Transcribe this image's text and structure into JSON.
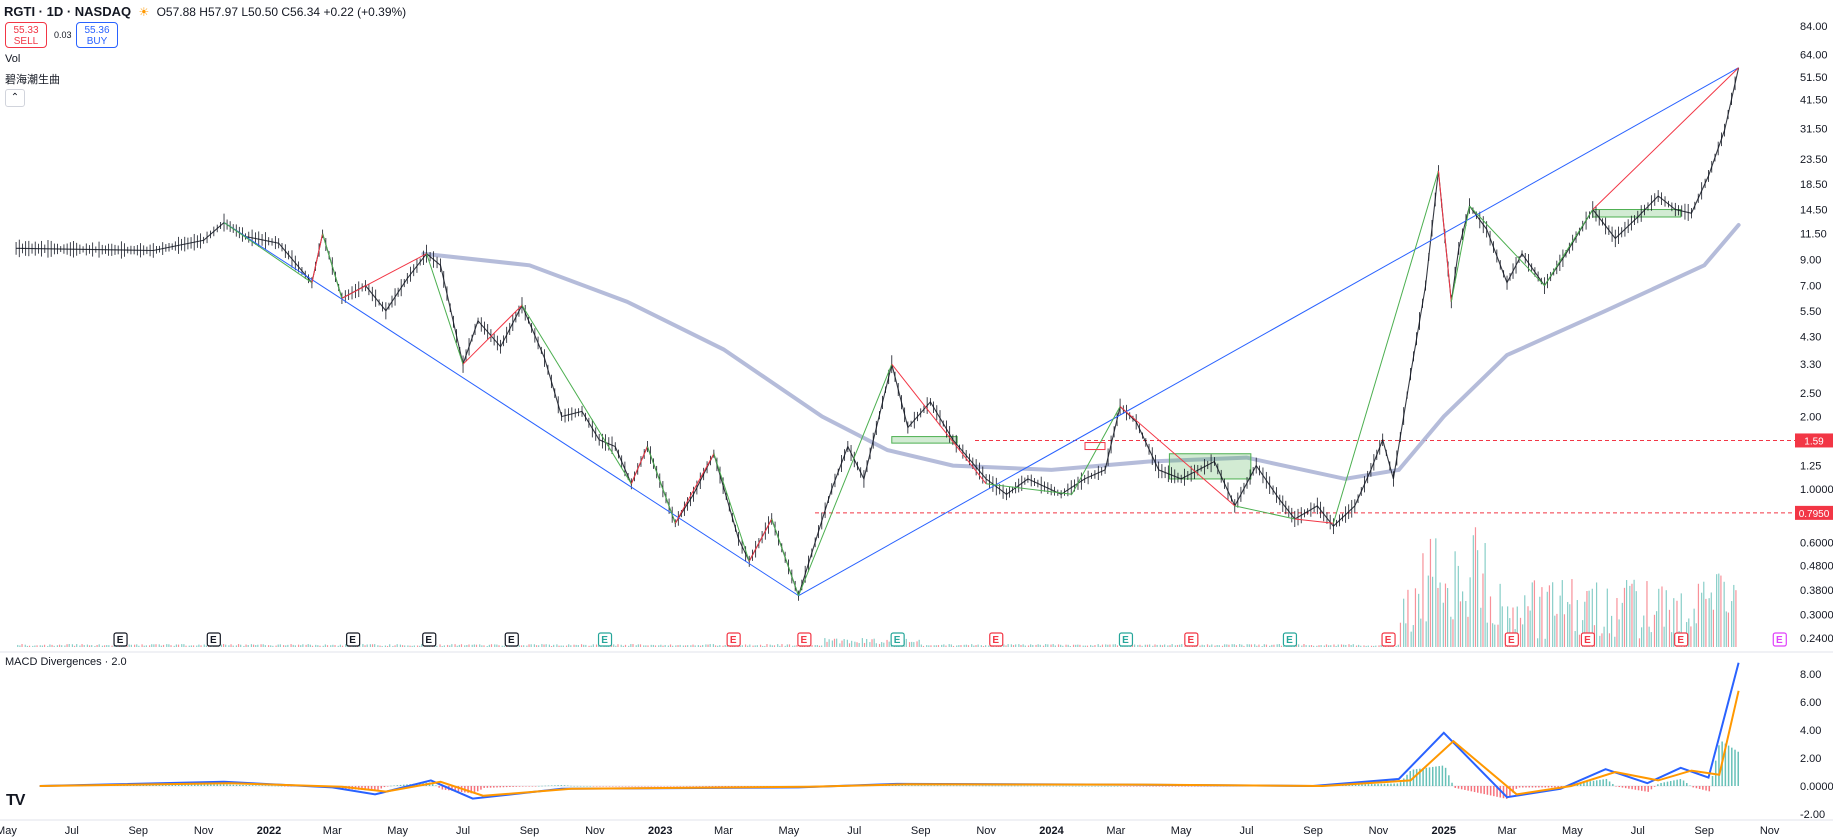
{
  "header": {
    "symbol": "RGTI · 1D · NASDAQ",
    "open": "O57.88",
    "high": "H57.97",
    "low": "L50.50",
    "close": "C56.34",
    "change": "+0.22 (+0.39%)"
  },
  "trade": {
    "sell_price": "55.33",
    "sell_label": "SELL",
    "spread": "0.03",
    "buy_price": "55.36",
    "buy_label": "BUY"
  },
  "legend": {
    "volume": "Vol",
    "indicator": "碧海潮生曲",
    "macd": "MACD Divergences · 2.0"
  },
  "colors": {
    "up": "#26a69a",
    "down": "#f23645",
    "zigzag_green": "#4caf50",
    "zigzag_red": "#f23645",
    "trend_blue": "#2962ff",
    "ma": "#a8b0d4",
    "macd": "#2962ff",
    "signal": "#ff9800"
  },
  "chart_data": [
    {
      "type": "line",
      "panel": "price",
      "scale": "log",
      "y_ticks": [
        "84.00",
        "64.00",
        "51.50",
        "41.50",
        "31.50",
        "23.50",
        "18.50",
        "14.50",
        "11.50",
        "9.00",
        "7.00",
        "5.50",
        "4.30",
        "3.30",
        "2.50",
        "2.00",
        "1.59",
        "1.25",
        "1.0000",
        "0.7950",
        "0.6000",
        "0.4800",
        "0.3800",
        "0.3000",
        "0.2400"
      ],
      "x_ticks": [
        "May",
        "Jul",
        "Sep",
        "Nov",
        "2022",
        "Mar",
        "May",
        "Jul",
        "Sep",
        "Nov",
        "2023",
        "Mar",
        "May",
        "Jul",
        "Sep",
        "Nov",
        "2024",
        "Mar",
        "May",
        "Jul",
        "Sep",
        "Nov",
        "2025",
        "Mar",
        "May",
        "Jul",
        "Sep",
        "Nov"
      ],
      "price_lines": [
        {
          "value": 1.59,
          "label": "1.59"
        },
        {
          "value": 0.795,
          "label": "0.7950"
        }
      ],
      "price_path": [
        [
          "2021-05-10",
          10.0
        ],
        [
          "2021-09-15",
          9.8
        ],
        [
          "2021-11-01",
          10.8
        ],
        [
          "2021-11-20",
          12.8
        ],
        [
          "2021-12-10",
          11.2
        ],
        [
          "2022-01-10",
          10.5
        ],
        [
          "2022-02-10",
          7.2
        ],
        [
          "2022-02-20",
          11.5
        ],
        [
          "2022-03-10",
          6.2
        ],
        [
          "2022-04-01",
          7.0
        ],
        [
          "2022-04-20",
          5.5
        ],
        [
          "2022-05-10",
          7.5
        ],
        [
          "2022-05-28",
          9.5
        ],
        [
          "2022-06-10",
          8.5
        ],
        [
          "2022-07-01",
          3.3
        ],
        [
          "2022-07-15",
          5.0
        ],
        [
          "2022-08-05",
          3.9
        ],
        [
          "2022-08-25",
          5.8
        ],
        [
          "2022-09-15",
          3.5
        ],
        [
          "2022-10-01",
          2.0
        ],
        [
          "2022-10-20",
          2.1
        ],
        [
          "2022-11-05",
          1.6
        ],
        [
          "2022-11-20",
          1.5
        ],
        [
          "2022-12-05",
          1.05
        ],
        [
          "2022-12-20",
          1.5
        ],
        [
          "2023-01-15",
          0.72
        ],
        [
          "2023-02-01",
          0.95
        ],
        [
          "2023-02-20",
          1.4
        ],
        [
          "2023-03-15",
          0.62
        ],
        [
          "2023-03-25",
          0.5
        ],
        [
          "2023-04-15",
          0.75
        ],
        [
          "2023-05-10",
          0.36
        ],
        [
          "2023-06-10",
          1.0
        ],
        [
          "2023-06-25",
          1.5
        ],
        [
          "2023-07-10",
          1.1
        ],
        [
          "2023-08-05",
          3.3
        ],
        [
          "2023-08-20",
          1.8
        ],
        [
          "2023-09-10",
          2.3
        ],
        [
          "2023-10-01",
          1.6
        ],
        [
          "2023-11-01",
          1.1
        ],
        [
          "2023-11-20",
          0.95
        ],
        [
          "2023-12-10",
          1.1
        ],
        [
          "2024-01-10",
          0.95
        ],
        [
          "2024-02-01",
          1.1
        ],
        [
          "2024-02-20",
          1.2
        ],
        [
          "2024-03-05",
          2.2
        ],
        [
          "2024-03-20",
          1.9
        ],
        [
          "2024-04-10",
          1.2
        ],
        [
          "2024-05-01",
          1.1
        ],
        [
          "2024-06-01",
          1.3
        ],
        [
          "2024-06-20",
          0.85
        ],
        [
          "2024-07-10",
          1.25
        ],
        [
          "2024-08-01",
          0.9
        ],
        [
          "2024-08-15",
          0.75
        ],
        [
          "2024-09-05",
          0.85
        ],
        [
          "2024-09-20",
          0.7
        ],
        [
          "2024-10-10",
          0.85
        ],
        [
          "2024-10-25",
          1.2
        ],
        [
          "2024-11-05",
          1.6
        ],
        [
          "2024-11-15",
          1.1
        ],
        [
          "2024-12-01",
          3.0
        ],
        [
          "2024-12-15",
          7.0
        ],
        [
          "2024-12-27",
          21.0
        ],
        [
          "2025-01-08",
          6.0
        ],
        [
          "2025-01-15",
          10.0
        ],
        [
          "2025-01-25",
          15.0
        ],
        [
          "2025-02-10",
          12.0
        ],
        [
          "2025-03-01",
          7.2
        ],
        [
          "2025-03-15",
          9.5
        ],
        [
          "2025-04-05",
          7.0
        ],
        [
          "2025-04-25",
          9.5
        ],
        [
          "2025-05-20",
          14.5
        ],
        [
          "2025-06-10",
          11.0
        ],
        [
          "2025-07-01",
          13.5
        ],
        [
          "2025-07-20",
          16.5
        ],
        [
          "2025-08-05",
          14.5
        ],
        [
          "2025-08-20",
          14.0
        ],
        [
          "2025-09-05",
          20.0
        ],
        [
          "2025-09-20",
          31.0
        ],
        [
          "2025-10-03",
          56.34
        ]
      ],
      "zigzag": [
        [
          "2021-11-20",
          12.8,
          "red"
        ],
        [
          "2022-02-10",
          7.2,
          "green"
        ],
        [
          "2022-02-20",
          11.5,
          "red"
        ],
        [
          "2022-03-10",
          6.2,
          "green"
        ],
        [
          "2022-05-28",
          9.5,
          "red"
        ],
        [
          "2022-07-01",
          3.3,
          "green"
        ],
        [
          "2022-08-25",
          5.8,
          "red"
        ],
        [
          "2022-12-05",
          1.05,
          "green"
        ],
        [
          "2022-12-20",
          1.5,
          "red"
        ],
        [
          "2023-01-15",
          0.72,
          "green"
        ],
        [
          "2023-02-20",
          1.4,
          "red"
        ],
        [
          "2023-03-25",
          0.5,
          "green"
        ],
        [
          "2023-04-15",
          0.75,
          "red"
        ],
        [
          "2023-05-10",
          0.36,
          "green"
        ],
        [
          "2023-08-05",
          3.3,
          "green"
        ],
        [
          "2023-11-01",
          1.05,
          "red"
        ],
        [
          "2024-01-20",
          0.95,
          "green"
        ],
        [
          "2024-03-05",
          2.2,
          "green"
        ],
        [
          "2024-06-20",
          0.85,
          "red"
        ],
        [
          "2024-08-15",
          0.75,
          "green"
        ],
        [
          "2024-09-20",
          0.72,
          "red"
        ],
        [
          "2024-12-27",
          21.0,
          "green"
        ],
        [
          "2025-01-08",
          6.0,
          "red"
        ],
        [
          "2025-01-25",
          15.0,
          "green"
        ],
        [
          "2025-04-05",
          7.0,
          "green"
        ],
        [
          "2025-05-20",
          14.5,
          "green"
        ],
        [
          "2025-10-03",
          56.34,
          "red"
        ]
      ],
      "trendlines": [
        [
          [
            "2021-11-20",
            12.8
          ],
          [
            "2023-05-10",
            0.36
          ]
        ],
        [
          [
            "2023-05-10",
            0.36
          ],
          [
            "2025-10-03",
            56.34
          ]
        ]
      ],
      "ma": [
        [
          "2022-05-25",
          9.5
        ],
        [
          "2022-09-01",
          8.5
        ],
        [
          "2022-12-01",
          6.0
        ],
        [
          "2023-03-01",
          3.8
        ],
        [
          "2023-06-01",
          2.0
        ],
        [
          "2023-08-01",
          1.45
        ],
        [
          "2023-10-01",
          1.25
        ],
        [
          "2024-01-01",
          1.2
        ],
        [
          "2024-04-01",
          1.3
        ],
        [
          "2024-07-01",
          1.35
        ],
        [
          "2024-10-01",
          1.1
        ],
        [
          "2024-11-20",
          1.2
        ],
        [
          "2025-01-01",
          2.0
        ],
        [
          "2025-03-01",
          3.6
        ],
        [
          "2025-06-01",
          5.5
        ],
        [
          "2025-09-01",
          8.5
        ],
        [
          "2025-10-03",
          12.5
        ]
      ],
      "boxes": [
        [
          "2023-08-05",
          "2023-10-05",
          1.65,
          1.55
        ],
        [
          "2024-04-20",
          "2024-07-05",
          1.4,
          1.1
        ],
        [
          "2025-05-20",
          "2025-08-10",
          14.5,
          13.5
        ]
      ],
      "earnings": [
        {
          "date": "2021-08-15",
          "type": "neutral"
        },
        {
          "date": "2021-11-10",
          "type": "neutral"
        },
        {
          "date": "2022-03-20",
          "type": "neutral"
        },
        {
          "date": "2022-05-30",
          "type": "neutral"
        },
        {
          "date": "2022-08-15",
          "type": "neutral"
        },
        {
          "date": "2022-11-10",
          "type": "up"
        },
        {
          "date": "2023-03-10",
          "type": "down"
        },
        {
          "date": "2023-05-15",
          "type": "down"
        },
        {
          "date": "2023-08-10",
          "type": "up"
        },
        {
          "date": "2023-11-10",
          "type": "down"
        },
        {
          "date": "2024-03-10",
          "type": "up"
        },
        {
          "date": "2024-05-10",
          "type": "down"
        },
        {
          "date": "2024-08-10",
          "type": "up"
        },
        {
          "date": "2024-11-10",
          "type": "down"
        },
        {
          "date": "2025-03-05",
          "type": "down"
        },
        {
          "date": "2025-05-15",
          "type": "down"
        },
        {
          "date": "2025-08-10",
          "type": "down"
        },
        {
          "date": "2025-11-10",
          "type": "future"
        }
      ]
    },
    {
      "type": "line",
      "panel": "macd",
      "y_ticks": [
        "8.00",
        "6.00",
        "4.00",
        "2.00",
        "0.0000",
        "-2.00"
      ],
      "series": [
        {
          "key": "macd",
          "points": [
            [
              "2021-06-01",
              0.0
            ],
            [
              "2021-11-20",
              0.3
            ],
            [
              "2022-03-01",
              -0.1
            ],
            [
              "2022-04-10",
              -0.6
            ],
            [
              "2022-06-01",
              0.4
            ],
            [
              "2022-07-10",
              -0.9
            ],
            [
              "2022-10-01",
              -0.2
            ],
            [
              "2023-05-10",
              -0.1
            ],
            [
              "2023-08-10",
              0.15
            ],
            [
              "2024-03-10",
              0.1
            ],
            [
              "2024-09-01",
              0.0
            ],
            [
              "2024-11-20",
              0.5
            ],
            [
              "2025-01-01",
              3.8
            ],
            [
              "2025-03-01",
              -0.8
            ],
            [
              "2025-04-20",
              -0.2
            ],
            [
              "2025-06-01",
              1.2
            ],
            [
              "2025-07-10",
              0.2
            ],
            [
              "2025-08-10",
              1.3
            ],
            [
              "2025-09-05",
              0.6
            ],
            [
              "2025-10-03",
              8.8
            ]
          ]
        },
        {
          "key": "signal",
          "points": [
            [
              "2021-06-01",
              0.0
            ],
            [
              "2021-11-25",
              0.2
            ],
            [
              "2022-03-10",
              -0.05
            ],
            [
              "2022-04-20",
              -0.4
            ],
            [
              "2022-06-10",
              0.3
            ],
            [
              "2022-07-20",
              -0.7
            ],
            [
              "2022-10-10",
              -0.2
            ],
            [
              "2023-05-20",
              -0.05
            ],
            [
              "2023-08-20",
              0.12
            ],
            [
              "2024-03-20",
              0.1
            ],
            [
              "2024-09-10",
              0.0
            ],
            [
              "2024-12-01",
              0.4
            ],
            [
              "2025-01-10",
              3.2
            ],
            [
              "2025-03-10",
              -0.6
            ],
            [
              "2025-04-30",
              0.0
            ],
            [
              "2025-06-10",
              1.0
            ],
            [
              "2025-07-20",
              0.4
            ],
            [
              "2025-08-20",
              1.1
            ],
            [
              "2025-09-15",
              0.8
            ],
            [
              "2025-10-03",
              6.8
            ]
          ]
        }
      ]
    }
  ]
}
